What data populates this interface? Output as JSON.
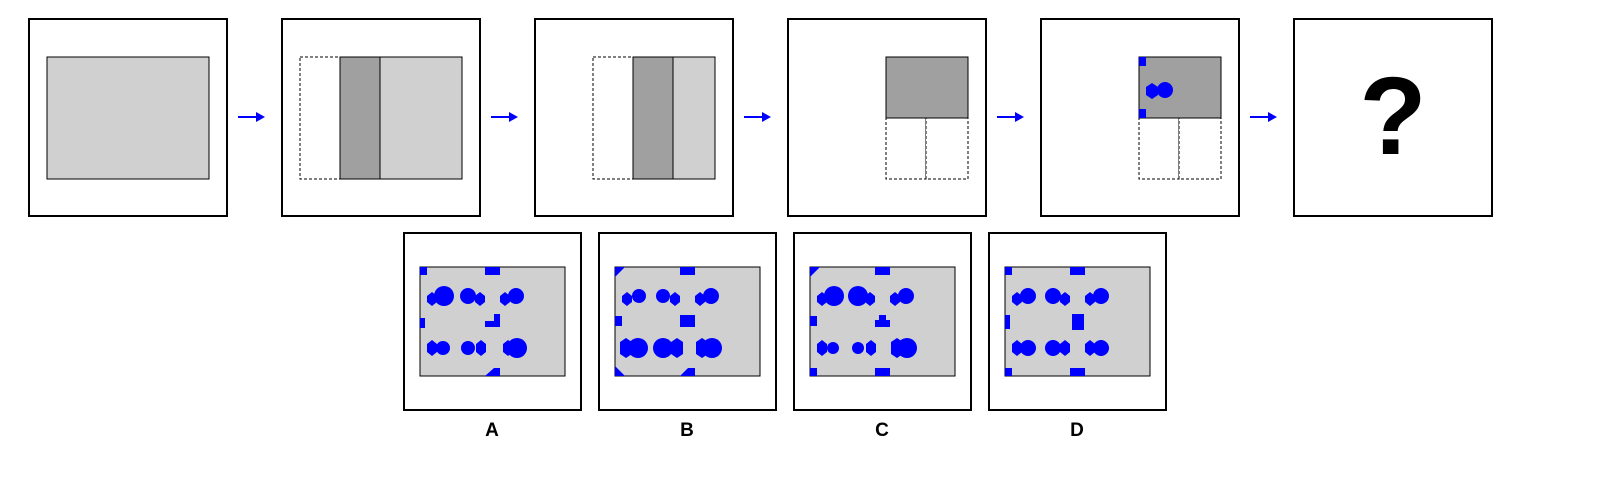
{
  "sequence": {
    "question_mark": "?",
    "colors": {
      "sheet": "#d0d0d0",
      "folded": "#a0a0a0",
      "hole": "#0000ff",
      "arrow": "#0000ff",
      "outline": "#000000"
    }
  },
  "options": [
    {
      "label": "A"
    },
    {
      "label": "B"
    },
    {
      "label": "C"
    },
    {
      "label": "D"
    }
  ]
}
